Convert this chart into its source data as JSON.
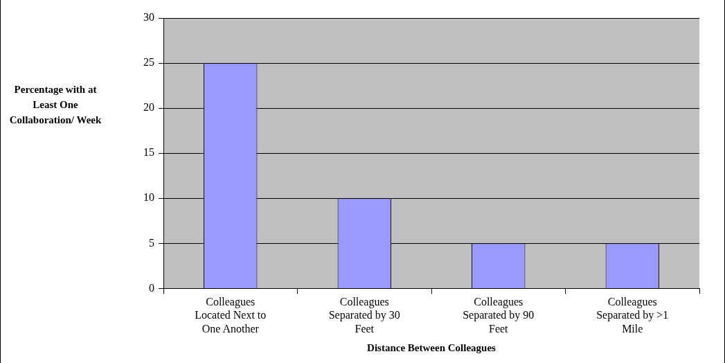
{
  "chart_data": {
    "type": "bar",
    "xlabel": "Distance Between Colleagues",
    "ylabel": "Percentage with at Least One Collaboration/ Week",
    "categories": [
      "Colleagues Located Next to One Another",
      "Colleagues Separated by 30 Feet",
      "Colleagues Separated by 90 Feet",
      "Colleagues Separated by >1 Mile"
    ],
    "values": [
      25,
      10,
      5,
      5
    ],
    "color": "#9999ff",
    "ylim": [
      0,
      30
    ],
    "yticks": [
      0,
      5,
      10,
      15,
      20,
      25,
      30
    ],
    "grid": "y",
    "legend": false
  }
}
